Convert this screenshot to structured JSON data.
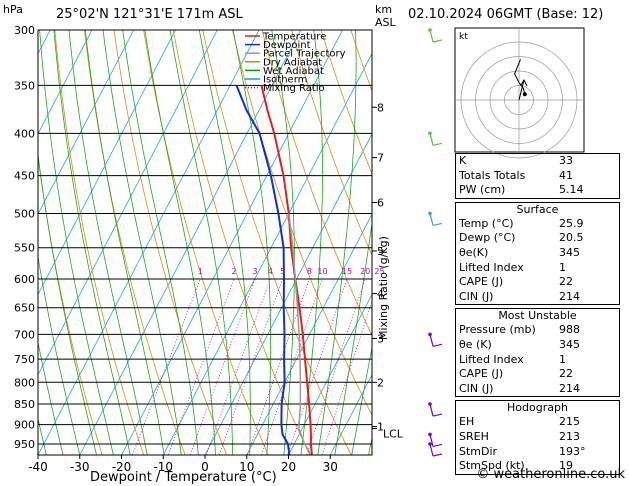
{
  "header": {
    "location": "25°02'N  121°31'E  171m  ASL",
    "datetime": "02.10.2024  06GMT  (Base: 12)",
    "pressure_unit": "hPa",
    "height_unit_line1": "km",
    "height_unit_line2": "ASL"
  },
  "axes": {
    "xlabel": "Dewpoint / Temperature (°C)",
    "mixing_label": "Mixing Ratio (g/kg)",
    "lcl_label": "LCL",
    "hodo_unit": "kt"
  },
  "legend": [
    {
      "label": "Temperature",
      "color": "#e0201e"
    },
    {
      "label": "Dewpoint",
      "color": "#1030c8"
    },
    {
      "label": "Parcel Trajectory",
      "color": "#999999"
    },
    {
      "label": "Dry Adiabat",
      "color": "#e08000"
    },
    {
      "label": "Wet Adiabat",
      "color": "#00a000"
    },
    {
      "label": "Isotherm",
      "color": "#00a0e0"
    },
    {
      "label": "Mixing Ratio",
      "color": "#c000c0"
    }
  ],
  "indices": [
    {
      "key": "K",
      "value": "33"
    },
    {
      "key": "Totals Totals",
      "value": "41"
    },
    {
      "key": "PW (cm)",
      "value": "5.14"
    }
  ],
  "surface": {
    "title": "Surface",
    "rows": [
      {
        "key": "Temp (°C)",
        "value": "25.9"
      },
      {
        "key": "Dewp (°C)",
        "value": "20.5"
      },
      {
        "key": "θe(K)",
        "value": "345"
      },
      {
        "key": "Lifted Index",
        "value": "1"
      },
      {
        "key": "CAPE (J)",
        "value": "22"
      },
      {
        "key": "CIN (J)",
        "value": "214"
      }
    ]
  },
  "most_unstable": {
    "title": "Most Unstable",
    "rows": [
      {
        "key": "Pressure (mb)",
        "value": "988"
      },
      {
        "key": "θe (K)",
        "value": "345"
      },
      {
        "key": "Lifted Index",
        "value": "1"
      },
      {
        "key": "CAPE (J)",
        "value": "22"
      },
      {
        "key": "CIN (J)",
        "value": "214"
      }
    ]
  },
  "hodograph_box": {
    "title": "Hodograph",
    "rows": [
      {
        "key": "EH",
        "value": "215"
      },
      {
        "key": "SREH",
        "value": "213"
      },
      {
        "key": "StmDir",
        "value": "193°"
      },
      {
        "key": "StmSpd (kt)",
        "value": "19"
      }
    ]
  },
  "credit": "© weatheronline.co.uk",
  "chart_data": {
    "type": "line",
    "title": "",
    "pressure_levels_hpa": [
      300,
      350,
      400,
      450,
      500,
      550,
      600,
      650,
      700,
      750,
      800,
      850,
      900,
      950
    ],
    "pressure_range_hpa": [
      300,
      1000
    ],
    "temperature_ticks_c": [
      -40,
      -30,
      -20,
      -10,
      0,
      10,
      20,
      30
    ],
    "temperature_range_c": [
      -40,
      40
    ],
    "height_ticks_km": [
      {
        "km": "1",
        "p": 905
      },
      {
        "km": "2",
        "p": 800
      },
      {
        "km": "3",
        "p": 708
      },
      {
        "km": "4",
        "p": 625
      },
      {
        "km": "5",
        "p": 555
      },
      {
        "km": "6",
        "p": 485
      },
      {
        "km": "7",
        "p": 428
      },
      {
        "km": "8",
        "p": 372
      }
    ],
    "mixing_ratio_labels": [
      "1",
      "2",
      "3",
      "4",
      "5",
      "8",
      "10",
      "15",
      "20",
      "25"
    ],
    "mixing_ratio_values": [
      1,
      2,
      3,
      4,
      5,
      8,
      10,
      15,
      20,
      25
    ],
    "series": [
      {
        "name": "Temperature",
        "color": "#e0201e",
        "p": [
          985,
          950,
          925,
          900,
          850,
          800,
          750,
          700,
          650,
          600,
          550,
          500,
          450,
          400,
          375,
          350
        ],
        "t": [
          25.9,
          24.0,
          22.8,
          21.5,
          18.6,
          15.4,
          12.0,
          8.4,
          4.3,
          -0.3,
          -5.2,
          -10.0,
          -16.0,
          -23.5,
          -28.0,
          -32.5
        ]
      },
      {
        "name": "Dewpoint",
        "color": "#1030c8",
        "p": [
          985,
          950,
          925,
          900,
          850,
          800,
          750,
          700,
          650,
          600,
          550,
          500,
          450,
          400,
          375,
          350
        ],
        "t": [
          20.5,
          18.5,
          16.0,
          14.5,
          12.0,
          10.0,
          7.0,
          4.0,
          0.5,
          -3.0,
          -7.0,
          -12.5,
          -19.0,
          -27.0,
          -33.0,
          -38.5
        ]
      },
      {
        "name": "Parcel Trajectory",
        "color": "#999999",
        "p": [
          985,
          950,
          910,
          850,
          800,
          750,
          700,
          650,
          600,
          550,
          500
        ],
        "t": [
          25.9,
          22.5,
          19.2,
          16.5,
          13.8,
          10.8,
          7.5,
          3.8,
          -0.3,
          -4.8,
          -10.0
        ]
      }
    ],
    "lcl_hpa": 910,
    "hodograph": {
      "u": [
        4,
        3,
        0,
        -3,
        -1,
        1
      ],
      "v": [
        4,
        8,
        12,
        18,
        23,
        28
      ],
      "rings_kt": [
        10,
        20,
        30,
        40
      ]
    },
    "wind_barbs": [
      {
        "p": 300,
        "color": "#60c040"
      },
      {
        "p": 400,
        "color": "#60c040"
      },
      {
        "p": 500,
        "color": "#40a0c0"
      },
      {
        "p": 700,
        "color": "#8000c0"
      },
      {
        "p": 850,
        "color": "#8000c0"
      },
      {
        "p": 925,
        "color": "#8000c0"
      },
      {
        "p": 950,
        "color": "#8000c0"
      }
    ]
  }
}
